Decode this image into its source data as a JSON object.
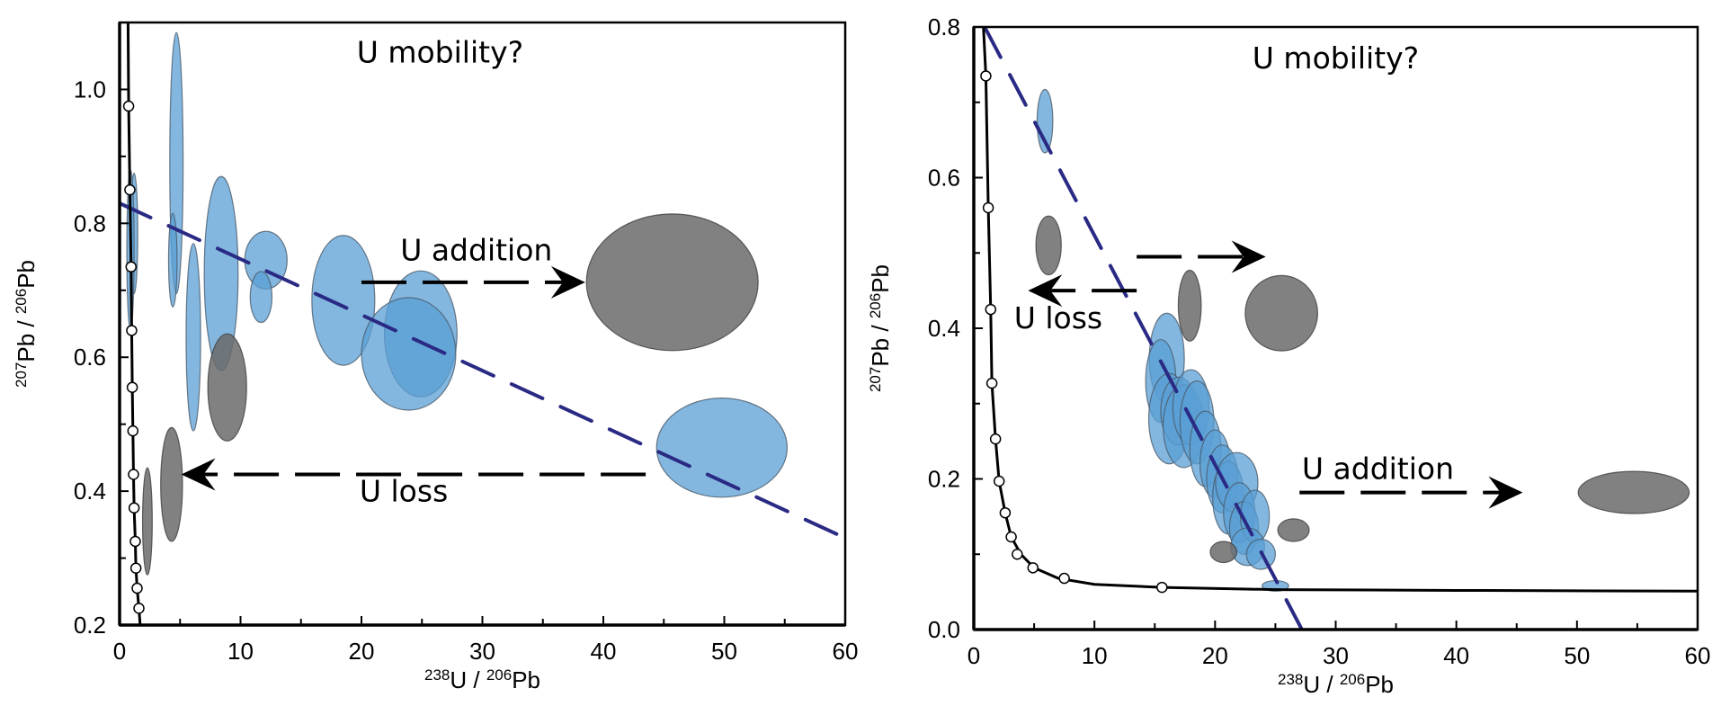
{
  "chart_data": [
    {
      "type": "scatter",
      "subtype": "error-ellipse concordia (Tera-Wasserburg)",
      "panel": "left",
      "title": "U mobility?",
      "xlabel": {
        "sup1": "238",
        "base1": "U",
        "sep": " / ",
        "sup2": "206",
        "base2": "Pb"
      },
      "ylabel": {
        "sup1": "207",
        "base1": "Pb",
        "sep": " / ",
        "sup2": "206",
        "base2": "Pb"
      },
      "xlim": [
        0,
        60
      ],
      "ylim": [
        0.2,
        1.1
      ],
      "xticks": [
        0,
        10,
        20,
        30,
        40,
        50,
        60
      ],
      "xtick_labels": [
        "0",
        "10",
        "20",
        "30",
        "40",
        "50",
        "60"
      ],
      "xminor": [
        5,
        15,
        25,
        35,
        45,
        55
      ],
      "yticks": [
        0.2,
        0.4,
        0.6,
        0.8,
        1.0
      ],
      "ytick_labels": [
        "0.2",
        "0.4",
        "0.6",
        "0.8",
        "1.0"
      ],
      "yminor": [
        0.3,
        0.5,
        0.7,
        0.9
      ],
      "grid": false,
      "concordia": {
        "curve": [
          [
            0.7,
            1.1
          ],
          [
            0.75,
            0.975
          ],
          [
            0.85,
            0.85
          ],
          [
            0.95,
            0.735
          ],
          [
            1.0,
            0.64
          ],
          [
            1.05,
            0.555
          ],
          [
            1.1,
            0.49
          ],
          [
            1.15,
            0.425
          ],
          [
            1.2,
            0.375
          ],
          [
            1.3,
            0.325
          ],
          [
            1.35,
            0.285
          ],
          [
            1.45,
            0.255
          ],
          [
            1.6,
            0.225
          ],
          [
            1.7,
            0.2
          ]
        ],
        "markers": [
          [
            0.75,
            0.975
          ],
          [
            0.85,
            0.85
          ],
          [
            0.95,
            0.735
          ],
          [
            1.0,
            0.64
          ],
          [
            1.05,
            0.555
          ],
          [
            1.1,
            0.49
          ],
          [
            1.15,
            0.425
          ],
          [
            1.2,
            0.375
          ],
          [
            1.3,
            0.325
          ],
          [
            1.35,
            0.285
          ],
          [
            1.45,
            0.255
          ],
          [
            1.6,
            0.225
          ]
        ]
      },
      "discordia": {
        "x1": 0,
        "y1": 0.83,
        "x2": 60,
        "y2": 0.33
      },
      "ellipses": [
        {
          "group": "blue",
          "cx": 4.7,
          "cy": 0.89,
          "rx": 0.55,
          "ry": 0.195
        },
        {
          "group": "blue",
          "cx": 4.4,
          "cy": 0.745,
          "rx": 0.35,
          "ry": 0.07
        },
        {
          "group": "blue",
          "cx": 6.1,
          "cy": 0.63,
          "rx": 0.6,
          "ry": 0.14
        },
        {
          "group": "blue",
          "cx": 8.4,
          "cy": 0.725,
          "rx": 1.4,
          "ry": 0.145
        },
        {
          "group": "blue",
          "cx": 12.1,
          "cy": 0.745,
          "rx": 1.75,
          "ry": 0.043
        },
        {
          "group": "blue",
          "cx": 11.7,
          "cy": 0.69,
          "rx": 0.9,
          "ry": 0.038
        },
        {
          "group": "blue",
          "cx": 18.5,
          "cy": 0.685,
          "rx": 2.6,
          "ry": 0.097
        },
        {
          "group": "blue",
          "cx": 24.9,
          "cy": 0.635,
          "rx": 3.0,
          "ry": 0.094
        },
        {
          "group": "blue",
          "cx": 23.9,
          "cy": 0.605,
          "rx": 3.9,
          "ry": 0.084
        },
        {
          "group": "blue",
          "cx": 49.8,
          "cy": 0.465,
          "rx": 5.4,
          "ry": 0.074
        },
        {
          "group": "blue",
          "cx": 1.2,
          "cy": 0.785,
          "rx": 0.3,
          "ry": 0.09
        },
        {
          "group": "blue",
          "cx": 0.9,
          "cy": 0.76,
          "rx": 0.3,
          "ry": 0.12
        },
        {
          "group": "grey",
          "cx": 8.9,
          "cy": 0.555,
          "rx": 1.6,
          "ry": 0.08
        },
        {
          "group": "grey",
          "cx": 4.3,
          "cy": 0.41,
          "rx": 0.9,
          "ry": 0.085
        },
        {
          "group": "grey",
          "cx": 2.3,
          "cy": 0.355,
          "rx": 0.4,
          "ry": 0.08
        },
        {
          "group": "grey",
          "cx": 45.7,
          "cy": 0.712,
          "rx": 7.1,
          "ry": 0.102
        }
      ],
      "annotations": [
        {
          "text": "U mobility?",
          "x": 26.5,
          "y": 1.04
        },
        {
          "text": "U addition",
          "x": 29.5,
          "y": 0.745
        },
        {
          "text": "U loss",
          "x": 23.5,
          "y": 0.385
        }
      ],
      "arrows": [
        {
          "label": "U addition",
          "from": [
            20,
            0.712
          ],
          "to": [
            38.5,
            0.712
          ]
        },
        {
          "label": "U loss",
          "from": [
            43.5,
            0.425
          ],
          "to": [
            5.1,
            0.425
          ]
        }
      ]
    },
    {
      "type": "scatter",
      "subtype": "error-ellipse concordia (Tera-Wasserburg)",
      "panel": "right",
      "title": "U mobility?",
      "xlabel": {
        "sup1": "238",
        "base1": "U",
        "sep": " / ",
        "sup2": "206",
        "base2": "Pb"
      },
      "ylabel": {
        "sup1": "207",
        "base1": "Pb",
        "sep": " / ",
        "sup2": "206",
        "base2": "Pb"
      },
      "xlim": [
        0,
        60
      ],
      "ylim": [
        0.0,
        0.8
      ],
      "xticks": [
        0,
        10,
        20,
        30,
        40,
        50,
        60
      ],
      "xtick_labels": [
        "0",
        "10",
        "20",
        "30",
        "40",
        "50",
        "60"
      ],
      "xminor": [
        5,
        15,
        25,
        35,
        45,
        55
      ],
      "yticks": [
        0.0,
        0.2,
        0.4,
        0.6,
        0.8
      ],
      "ytick_labels": [
        "0.0",
        "0.2",
        "0.4",
        "0.6",
        "0.8"
      ],
      "yminor": [
        0.1,
        0.3,
        0.5,
        0.7
      ],
      "grid": false,
      "concordia": {
        "curve": [
          [
            0.8,
            0.8
          ],
          [
            1.0,
            0.735
          ],
          [
            1.2,
            0.56
          ],
          [
            1.4,
            0.425
          ],
          [
            1.5,
            0.327
          ],
          [
            1.8,
            0.253
          ],
          [
            2.1,
            0.197
          ],
          [
            2.6,
            0.155
          ],
          [
            3.1,
            0.123
          ],
          [
            3.9,
            0.1
          ],
          [
            5.0,
            0.082
          ],
          [
            7.0,
            0.068
          ],
          [
            10,
            0.06
          ],
          [
            15.6,
            0.056
          ],
          [
            25,
            0.053
          ],
          [
            40,
            0.052
          ],
          [
            60,
            0.051
          ]
        ],
        "markers": [
          [
            1.0,
            0.735
          ],
          [
            1.2,
            0.56
          ],
          [
            1.4,
            0.425
          ],
          [
            1.5,
            0.327
          ],
          [
            1.8,
            0.253
          ],
          [
            2.1,
            0.197
          ],
          [
            2.6,
            0.155
          ],
          [
            3.1,
            0.123
          ],
          [
            3.6,
            0.1
          ],
          [
            4.9,
            0.082
          ],
          [
            7.5,
            0.068
          ],
          [
            15.6,
            0.056
          ]
        ]
      },
      "discordia": {
        "x1": 0.9,
        "y1": 0.8,
        "x2": 27.2,
        "y2": 0.0
      },
      "ellipses": [
        {
          "group": "blue",
          "cx": 5.9,
          "cy": 0.675,
          "rx": 0.65,
          "ry": 0.042
        },
        {
          "group": "blue",
          "cx": 16.0,
          "cy": 0.36,
          "rx": 1.45,
          "ry": 0.06
        },
        {
          "group": "blue",
          "cx": 15.5,
          "cy": 0.33,
          "rx": 1.25,
          "ry": 0.055
        },
        {
          "group": "blue",
          "cx": 16.2,
          "cy": 0.28,
          "rx": 1.7,
          "ry": 0.06
        },
        {
          "group": "blue",
          "cx": 17.0,
          "cy": 0.29,
          "rx": 1.5,
          "ry": 0.045
        },
        {
          "group": "blue",
          "cx": 17.4,
          "cy": 0.27,
          "rx": 1.7,
          "ry": 0.055
        },
        {
          "group": "blue",
          "cx": 18.0,
          "cy": 0.295,
          "rx": 1.5,
          "ry": 0.05
        },
        {
          "group": "blue",
          "cx": 18.5,
          "cy": 0.275,
          "rx": 1.4,
          "ry": 0.055
        },
        {
          "group": "blue",
          "cx": 19.2,
          "cy": 0.24,
          "rx": 1.3,
          "ry": 0.05
        },
        {
          "group": "blue",
          "cx": 20.0,
          "cy": 0.22,
          "rx": 1.25,
          "ry": 0.045
        },
        {
          "group": "blue",
          "cx": 20.6,
          "cy": 0.2,
          "rx": 1.3,
          "ry": 0.045
        },
        {
          "group": "blue",
          "cx": 21.1,
          "cy": 0.175,
          "rx": 1.3,
          "ry": 0.048
        },
        {
          "group": "blue",
          "cx": 21.8,
          "cy": 0.195,
          "rx": 1.75,
          "ry": 0.04
        },
        {
          "group": "blue",
          "cx": 22.0,
          "cy": 0.155,
          "rx": 1.3,
          "ry": 0.04
        },
        {
          "group": "blue",
          "cx": 22.4,
          "cy": 0.135,
          "rx": 1.2,
          "ry": 0.035
        },
        {
          "group": "blue",
          "cx": 23.3,
          "cy": 0.15,
          "rx": 1.2,
          "ry": 0.035
        },
        {
          "group": "blue",
          "cx": 22.7,
          "cy": 0.11,
          "rx": 1.4,
          "ry": 0.025
        },
        {
          "group": "blue",
          "cx": 23.8,
          "cy": 0.1,
          "rx": 1.2,
          "ry": 0.02
        },
        {
          "group": "blue",
          "cx": 25.0,
          "cy": 0.058,
          "rx": 1.1,
          "ry": 0.007
        },
        {
          "group": "grey",
          "cx": 6.2,
          "cy": 0.51,
          "rx": 1.05,
          "ry": 0.039
        },
        {
          "group": "grey",
          "cx": 17.9,
          "cy": 0.43,
          "rx": 0.95,
          "ry": 0.047
        },
        {
          "group": "grey",
          "cx": 25.5,
          "cy": 0.42,
          "rx": 3.0,
          "ry": 0.05
        },
        {
          "group": "grey",
          "cx": 20.7,
          "cy": 0.103,
          "rx": 1.1,
          "ry": 0.014
        },
        {
          "group": "grey",
          "cx": 26.5,
          "cy": 0.132,
          "rx": 1.3,
          "ry": 0.015
        },
        {
          "group": "grey",
          "cx": 54.7,
          "cy": 0.182,
          "rx": 4.6,
          "ry": 0.028
        }
      ],
      "annotations": [
        {
          "text": "U mobility?",
          "x": 30,
          "y": 0.745
        },
        {
          "text": "U addition",
          "x": 33.5,
          "y": 0.2
        },
        {
          "text": "U loss",
          "x": 7,
          "y": 0.4
        }
      ],
      "arrows": [
        {
          "label": "U addition",
          "from": [
            27,
            0.182
          ],
          "to": [
            45.5,
            0.182
          ]
        },
        {
          "label": "U loss",
          "from": [
            13.5,
            0.45
          ],
          "to": [
            4.5,
            0.45
          ]
        },
        {
          "label": "",
          "from": [
            13.5,
            0.495
          ],
          "to": [
            24.2,
            0.495
          ]
        }
      ]
    }
  ],
  "colors": {
    "blue_fill": "#5a9fd4",
    "blue_stroke": "#4a5a6a",
    "grey_fill": "#6b6b6b",
    "grey_stroke": "#3f3f3f",
    "discordia": "#2a2a85",
    "axis": "#000000"
  }
}
